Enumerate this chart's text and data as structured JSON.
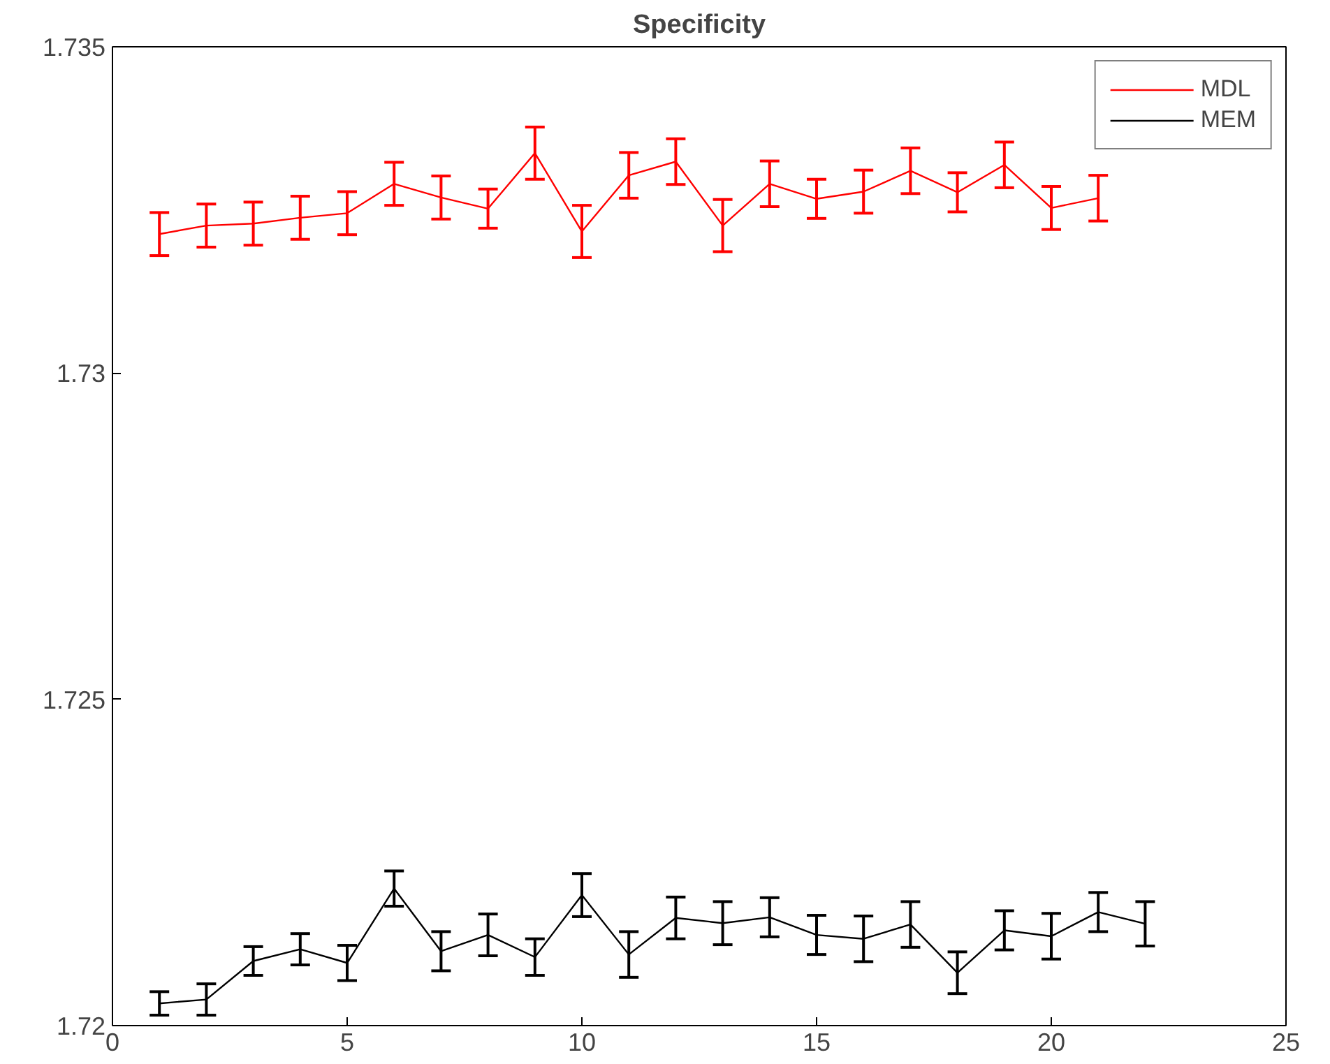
{
  "chart_data": {
    "type": "line",
    "title": "Specificity",
    "xlim": [
      0,
      25
    ],
    "xticks": [
      0,
      5,
      10,
      15,
      20,
      25
    ],
    "ylim": [
      1.72,
      1.735
    ],
    "yticks": [
      1.72,
      1.725,
      1.73,
      1.735
    ],
    "grid": false,
    "legend": "top right",
    "marker": "none",
    "line_style": "solid",
    "series": [
      {
        "name": "MDL",
        "color": "#ff0000",
        "x": [
          1,
          2,
          3,
          4,
          5,
          6,
          7,
          8,
          9,
          10,
          11,
          12,
          13,
          14,
          15,
          16,
          17,
          18,
          19,
          20,
          21
        ],
        "values": [
          1.73213,
          1.73226,
          1.73229,
          1.73238,
          1.73245,
          1.7329,
          1.73269,
          1.73252,
          1.73337,
          1.73217,
          1.73303,
          1.73324,
          1.73226,
          1.7329,
          1.73267,
          1.73278,
          1.7331,
          1.73277,
          1.73319,
          1.73253,
          1.73268
        ],
        "errors": [
          0.00033,
          0.00033,
          0.00033,
          0.00033,
          0.00033,
          0.00033,
          0.00033,
          0.0003,
          0.0004,
          0.0004,
          0.00035,
          0.00035,
          0.0004,
          0.00035,
          0.0003,
          0.00033,
          0.00035,
          0.0003,
          0.00035,
          0.00033,
          0.00035
        ]
      },
      {
        "name": "MEM",
        "color": "#000000",
        "x": [
          1,
          2,
          3,
          4,
          5,
          6,
          7,
          8,
          9,
          10,
          11,
          12,
          13,
          14,
          15,
          16,
          17,
          18,
          19,
          20,
          21,
          22
        ],
        "values": [
          1.72034,
          1.7204,
          1.72099,
          1.72117,
          1.72096,
          1.7221,
          1.72114,
          1.72139,
          1.72105,
          1.722,
          1.72109,
          1.72165,
          1.72157,
          1.72166,
          1.72139,
          1.72133,
          1.72155,
          1.72081,
          1.72146,
          1.72137,
          1.72174,
          1.72156
        ],
        "errors": [
          0.00018,
          0.00024,
          0.00022,
          0.00024,
          0.00027,
          0.00027,
          0.0003,
          0.00032,
          0.00028,
          0.00033,
          0.00035,
          0.00032,
          0.00033,
          0.0003,
          0.0003,
          0.00035,
          0.00035,
          0.00032,
          0.0003,
          0.00035,
          0.0003,
          0.00034
        ]
      }
    ]
  }
}
